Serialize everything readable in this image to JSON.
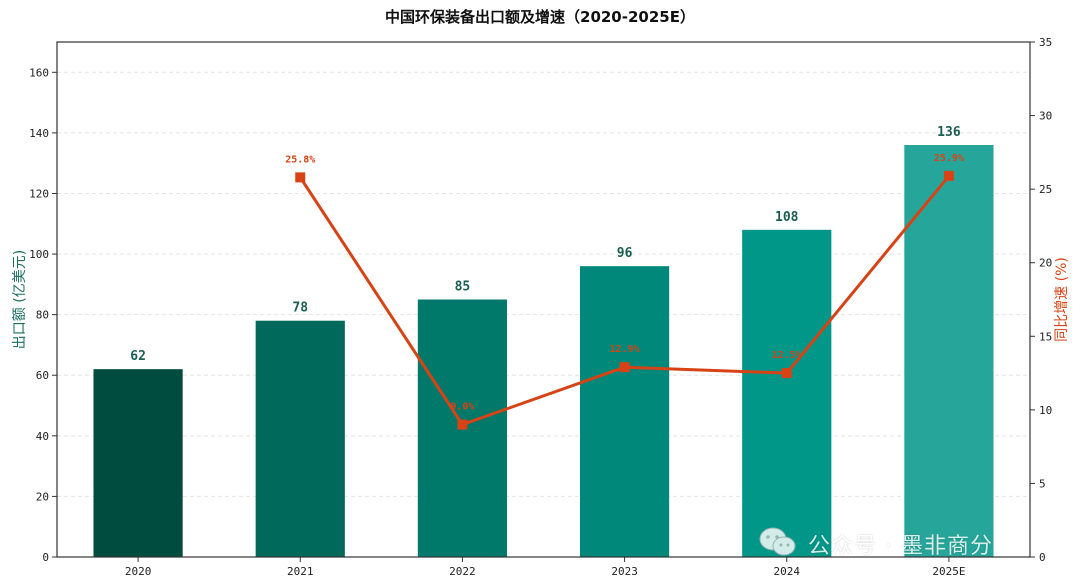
{
  "chart_data": {
    "type": "bar",
    "title": "中国环保装备出口额及增速（2020-2025E）",
    "categories": [
      "2020",
      "2021",
      "2022",
      "2023",
      "2024",
      "2025E"
    ],
    "series": [
      {
        "name": "出口额",
        "type": "bar",
        "axis": "left",
        "values": [
          62,
          78,
          85,
          96,
          108,
          136
        ],
        "labels": [
          "62",
          "78",
          "85",
          "96",
          "108",
          "136"
        ],
        "colors": [
          "#004D40",
          "#00695C",
          "#00796B",
          "#00897B",
          "#009688",
          "#26A69A"
        ]
      },
      {
        "name": "同比增速",
        "type": "line",
        "axis": "right",
        "values": [
          null,
          25.8,
          9.0,
          12.9,
          12.5,
          25.9
        ],
        "labels": [
          "",
          "25.8%",
          "9.0%",
          "12.9%",
          "12.5%",
          "25.9%"
        ],
        "color": "#D84315"
      }
    ],
    "ylabel": "出口额 (亿美元)",
    "ylabel_right": "同比增速 (%)",
    "ylim": [
      0,
      170
    ],
    "ylim_right": [
      0,
      35
    ],
    "yticks": [
      "0",
      "20",
      "40",
      "60",
      "80",
      "100",
      "120",
      "140",
      "160"
    ],
    "yticks_right": [
      "0",
      "5",
      "10",
      "15",
      "20",
      "25",
      "30",
      "35"
    ],
    "grid": true,
    "legend": "none"
  },
  "watermark": {
    "icon": "wechat-icon",
    "text": "公众号 · 墨非商分"
  }
}
